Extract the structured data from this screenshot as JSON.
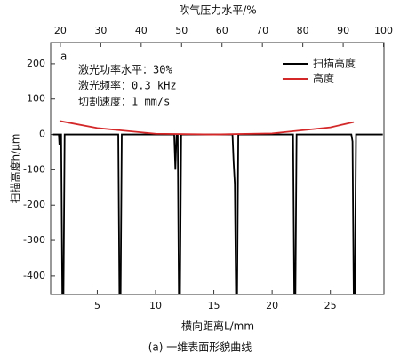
{
  "chart_data": {
    "type": "line",
    "x2label": "吹气压力水平/%",
    "xlabel": "横向距离L/mm",
    "ylabel": "扫描高度h/μm",
    "caption": "(a) 一维表面形貌曲线",
    "annotations": [
      "a",
      "激光功率水平：30%",
      "激光频率：0.3 kHz",
      "切割速度：1 mm/s"
    ],
    "xlim": [
      1,
      29.6
    ],
    "xticks": [
      5,
      10,
      15,
      20,
      25
    ],
    "x2lim": [
      17.6,
      100.1
    ],
    "x2ticks": [
      20,
      30,
      40,
      50,
      60,
      70,
      80,
      90,
      100
    ],
    "ylim": [
      -453,
      260
    ],
    "yticks": [
      200,
      100,
      0,
      -100,
      -200,
      -300,
      -400
    ],
    "legend": "upper right",
    "series": [
      {
        "name": "扫描高度",
        "color": "#000000",
        "x": [
          1.2,
          1.7,
          1.75,
          1.8,
          1.9,
          2.0,
          2.1,
          2.2,
          6.8,
          6.9,
          7.0,
          7.1,
          7.2,
          11.6,
          11.7,
          11.8,
          11.9,
          12.0,
          12.1,
          12.2,
          16.6,
          16.7,
          16.8,
          16.9,
          17.0,
          17.1,
          17.2,
          21.8,
          21.9,
          22.0,
          22.1,
          22.2,
          26.8,
          26.9,
          27.0,
          27.1,
          27.2,
          29.5
        ],
        "values": [
          0,
          0,
          -30,
          0,
          0,
          -450,
          -450,
          0,
          0,
          -450,
          -450,
          0,
          0,
          0,
          -100,
          0,
          0,
          -450,
          -450,
          0,
          0,
          -80,
          -140,
          -450,
          -450,
          0,
          0,
          0,
          -450,
          -450,
          0,
          0,
          0,
          -20,
          -450,
          -450,
          0,
          0
        ]
      },
      {
        "name": "高度",
        "color": "#d62728",
        "x": [
          1.8,
          5,
          10,
          15,
          20,
          25,
          27
        ],
        "values": [
          38,
          18,
          2,
          0,
          3,
          20,
          35
        ]
      }
    ]
  }
}
